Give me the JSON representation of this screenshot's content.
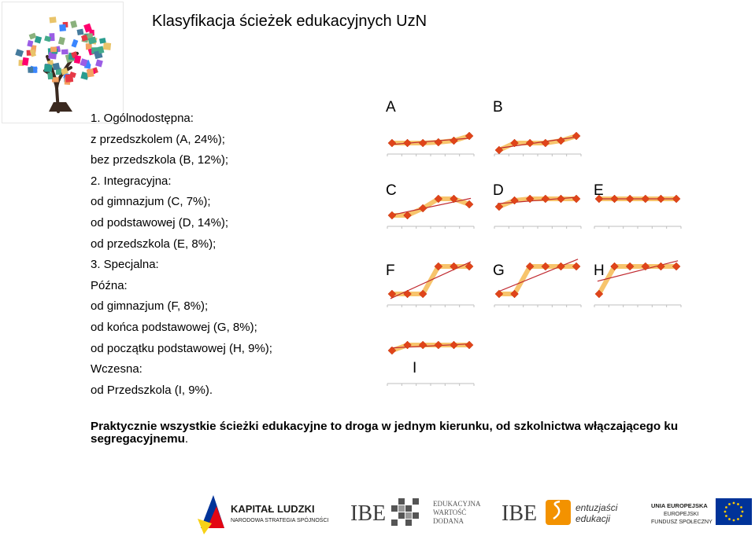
{
  "title": "Klasyfikacja ścieżek edukacyjnych UzN",
  "list": [
    "1. Ogólnodostępna:",
    "z przedszkolem (A, 24%);",
    "bez przedszkola (B, 12%);",
    "2. Integracyjna:",
    "od gimnazjum (C, 7%);",
    "od podstawowej (D, 14%);",
    "od przedszkola (E, 8%);",
    "3. Specjalna:",
    "Późna:",
    "od gimnazjum (F, 8%);",
    "od końca podstawowej (G, 8%);",
    "od początku podstawowej (H, 9%);",
    "Wczesna:",
    "od Przedszkola (I, 9%)."
  ],
  "conclusion": {
    "bold": "Praktycznie wszystkie ścieżki edukacyjne to droga w jednym kierunku, od szkolnictwa włączającego ku segregacyjnemu",
    "rest": "."
  },
  "colors": {
    "marker": "#e0441a",
    "band": "#f7c46c",
    "trend": "#c0282e",
    "axis": "#bfbfbf",
    "eu_blue": "#003399",
    "ibe_orange": "#f39200"
  },
  "chart_data": [
    {
      "type": "line",
      "label": "A",
      "y": [
        1,
        1,
        1,
        1.1,
        1.3,
        1.9
      ],
      "ylim": [
        0,
        5
      ]
    },
    {
      "type": "line",
      "label": "B",
      "y": [
        0.1,
        1,
        1,
        1,
        1.3,
        1.9
      ],
      "ylim": [
        0,
        5
      ]
    },
    {
      "type": "line",
      "label": "C",
      "y": [
        1,
        1,
        1.9,
        3.1,
        3.1,
        2.4
      ],
      "ylim": [
        0,
        5
      ]
    },
    {
      "type": "line",
      "label": "D",
      "y": [
        2.1,
        2.9,
        3.1,
        3.1,
        3.1,
        3.1
      ],
      "ylim": [
        0,
        5
      ]
    },
    {
      "type": "line",
      "label": "E",
      "y": [
        3.1,
        3.1,
        3.1,
        3.1,
        3.1,
        3.1
      ],
      "ylim": [
        0,
        5
      ]
    },
    {
      "type": "line",
      "label": "F",
      "y": [
        1,
        1,
        1,
        4.5,
        4.5,
        4.5
      ],
      "ylim": [
        0,
        5
      ]
    },
    {
      "type": "line",
      "label": "G",
      "y": [
        1,
        1,
        4.5,
        4.5,
        4.5,
        4.5
      ],
      "ylim": [
        0,
        5
      ]
    },
    {
      "type": "line",
      "label": "H",
      "y": [
        1,
        4.5,
        4.5,
        4.5,
        4.5,
        4.5
      ],
      "ylim": [
        0,
        5
      ]
    },
    {
      "type": "line",
      "label": "I",
      "y": [
        3.8,
        4.5,
        4.5,
        4.5,
        4.5,
        4.5
      ],
      "ylim": [
        0,
        5
      ]
    }
  ],
  "footer": {
    "kl_line1": "KAPITAŁ LUDZKI",
    "kl_line2": "NARODOWA STRATEGIA SPÓJNOŚCI",
    "ibe1": "IBE",
    "ew_line1": "EDUKACYJNA",
    "ew_line2": "WARTOŚĆ",
    "ew_line3": "DODANA",
    "ibe2": "IBE",
    "ent_line1": "entuzjaści",
    "ent_line2": "edukacji",
    "eu_line1": "UNIA EUROPEJSKA",
    "eu_line2": "EUROPEJSKI",
    "eu_line3": "FUNDUSZ SPOŁECZNY"
  }
}
